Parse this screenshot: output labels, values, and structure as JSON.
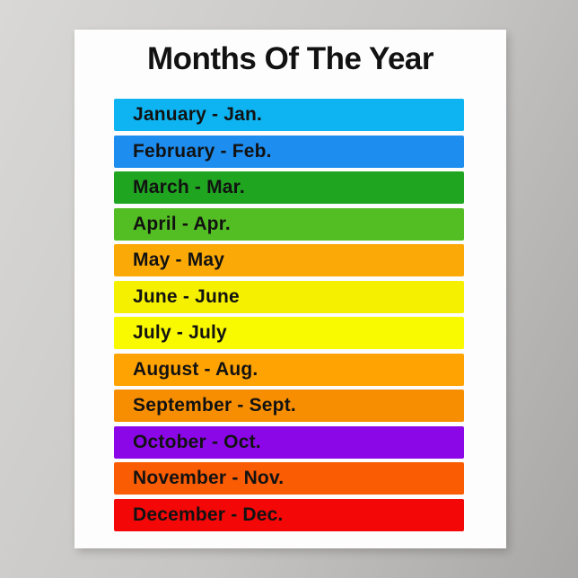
{
  "theme": {
    "bg_light": "#d9d8d6",
    "bg_mid": "#c6c5c3",
    "bg_dark": "#a8a7a5",
    "poster_bg": "#fdfdfd",
    "text": "#121212"
  },
  "poster": {
    "title": "Months Of The Year",
    "months": [
      {
        "label": "January - Jan.",
        "color": "#0db4f1"
      },
      {
        "label": "February - Feb.",
        "color": "#1d8df0"
      },
      {
        "label": "March - Mar.",
        "color": "#20a521"
      },
      {
        "label": "April - Apr.",
        "color": "#53be23"
      },
      {
        "label": "May - May",
        "color": "#fba907"
      },
      {
        "label": "June - June",
        "color": "#f4f000"
      },
      {
        "label": "July - July",
        "color": "#f9f900"
      },
      {
        "label": "August - Aug.",
        "color": "#ffa303"
      },
      {
        "label": "September - Sept.",
        "color": "#f78e02"
      },
      {
        "label": "October - Oct.",
        "color": "#8b07e8"
      },
      {
        "label": "November - Nov.",
        "color": "#fa5c04"
      },
      {
        "label": "December - Dec.",
        "color": "#f40707"
      }
    ]
  }
}
